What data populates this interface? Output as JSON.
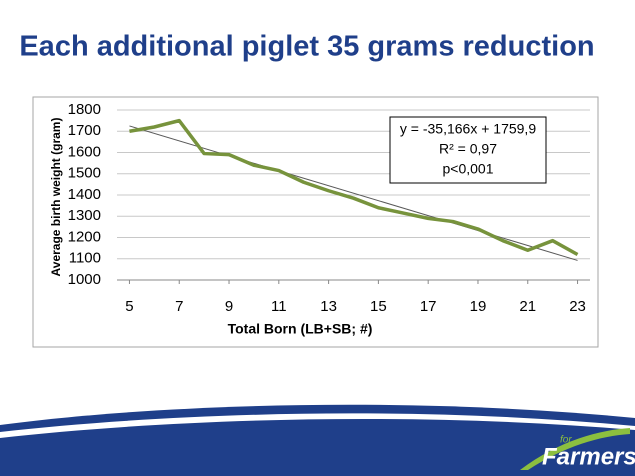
{
  "chart_data": {
    "type": "line",
    "title": "Each additional piglet 35 grams reduction",
    "x_label": "Total Born (LB+SB; #)",
    "y_label": "Average birth weight (gram)",
    "x": [
      5,
      6,
      7,
      8,
      9,
      10,
      11,
      12,
      13,
      14,
      15,
      16,
      17,
      18,
      19,
      20,
      21,
      22,
      23
    ],
    "values": [
      1700,
      1720,
      1750,
      1595,
      1590,
      1540,
      1515,
      1460,
      1420,
      1385,
      1340,
      1315,
      1290,
      1275,
      1240,
      1185,
      1140,
      1185,
      1120
    ],
    "color": "#77933c",
    "trendline": {
      "x": [
        5,
        23
      ],
      "values": [
        1725,
        1092
      ],
      "color": "#595959"
    },
    "annotations": [
      "y = -35,166x + 1759,9",
      "R² = 0,97",
      "p<0,001"
    ],
    "xlim": [
      4.5,
      23.5
    ],
    "xticks": [
      5,
      7,
      9,
      11,
      13,
      15,
      17,
      19,
      21,
      23
    ],
    "ylim": [
      1000,
      1800
    ],
    "yticks": [
      1000,
      1100,
      1200,
      1300,
      1400,
      1500,
      1600,
      1700,
      1800
    ],
    "grid": true
  },
  "footer": {
    "logo_small": "for",
    "logo_name": "Farmers"
  }
}
